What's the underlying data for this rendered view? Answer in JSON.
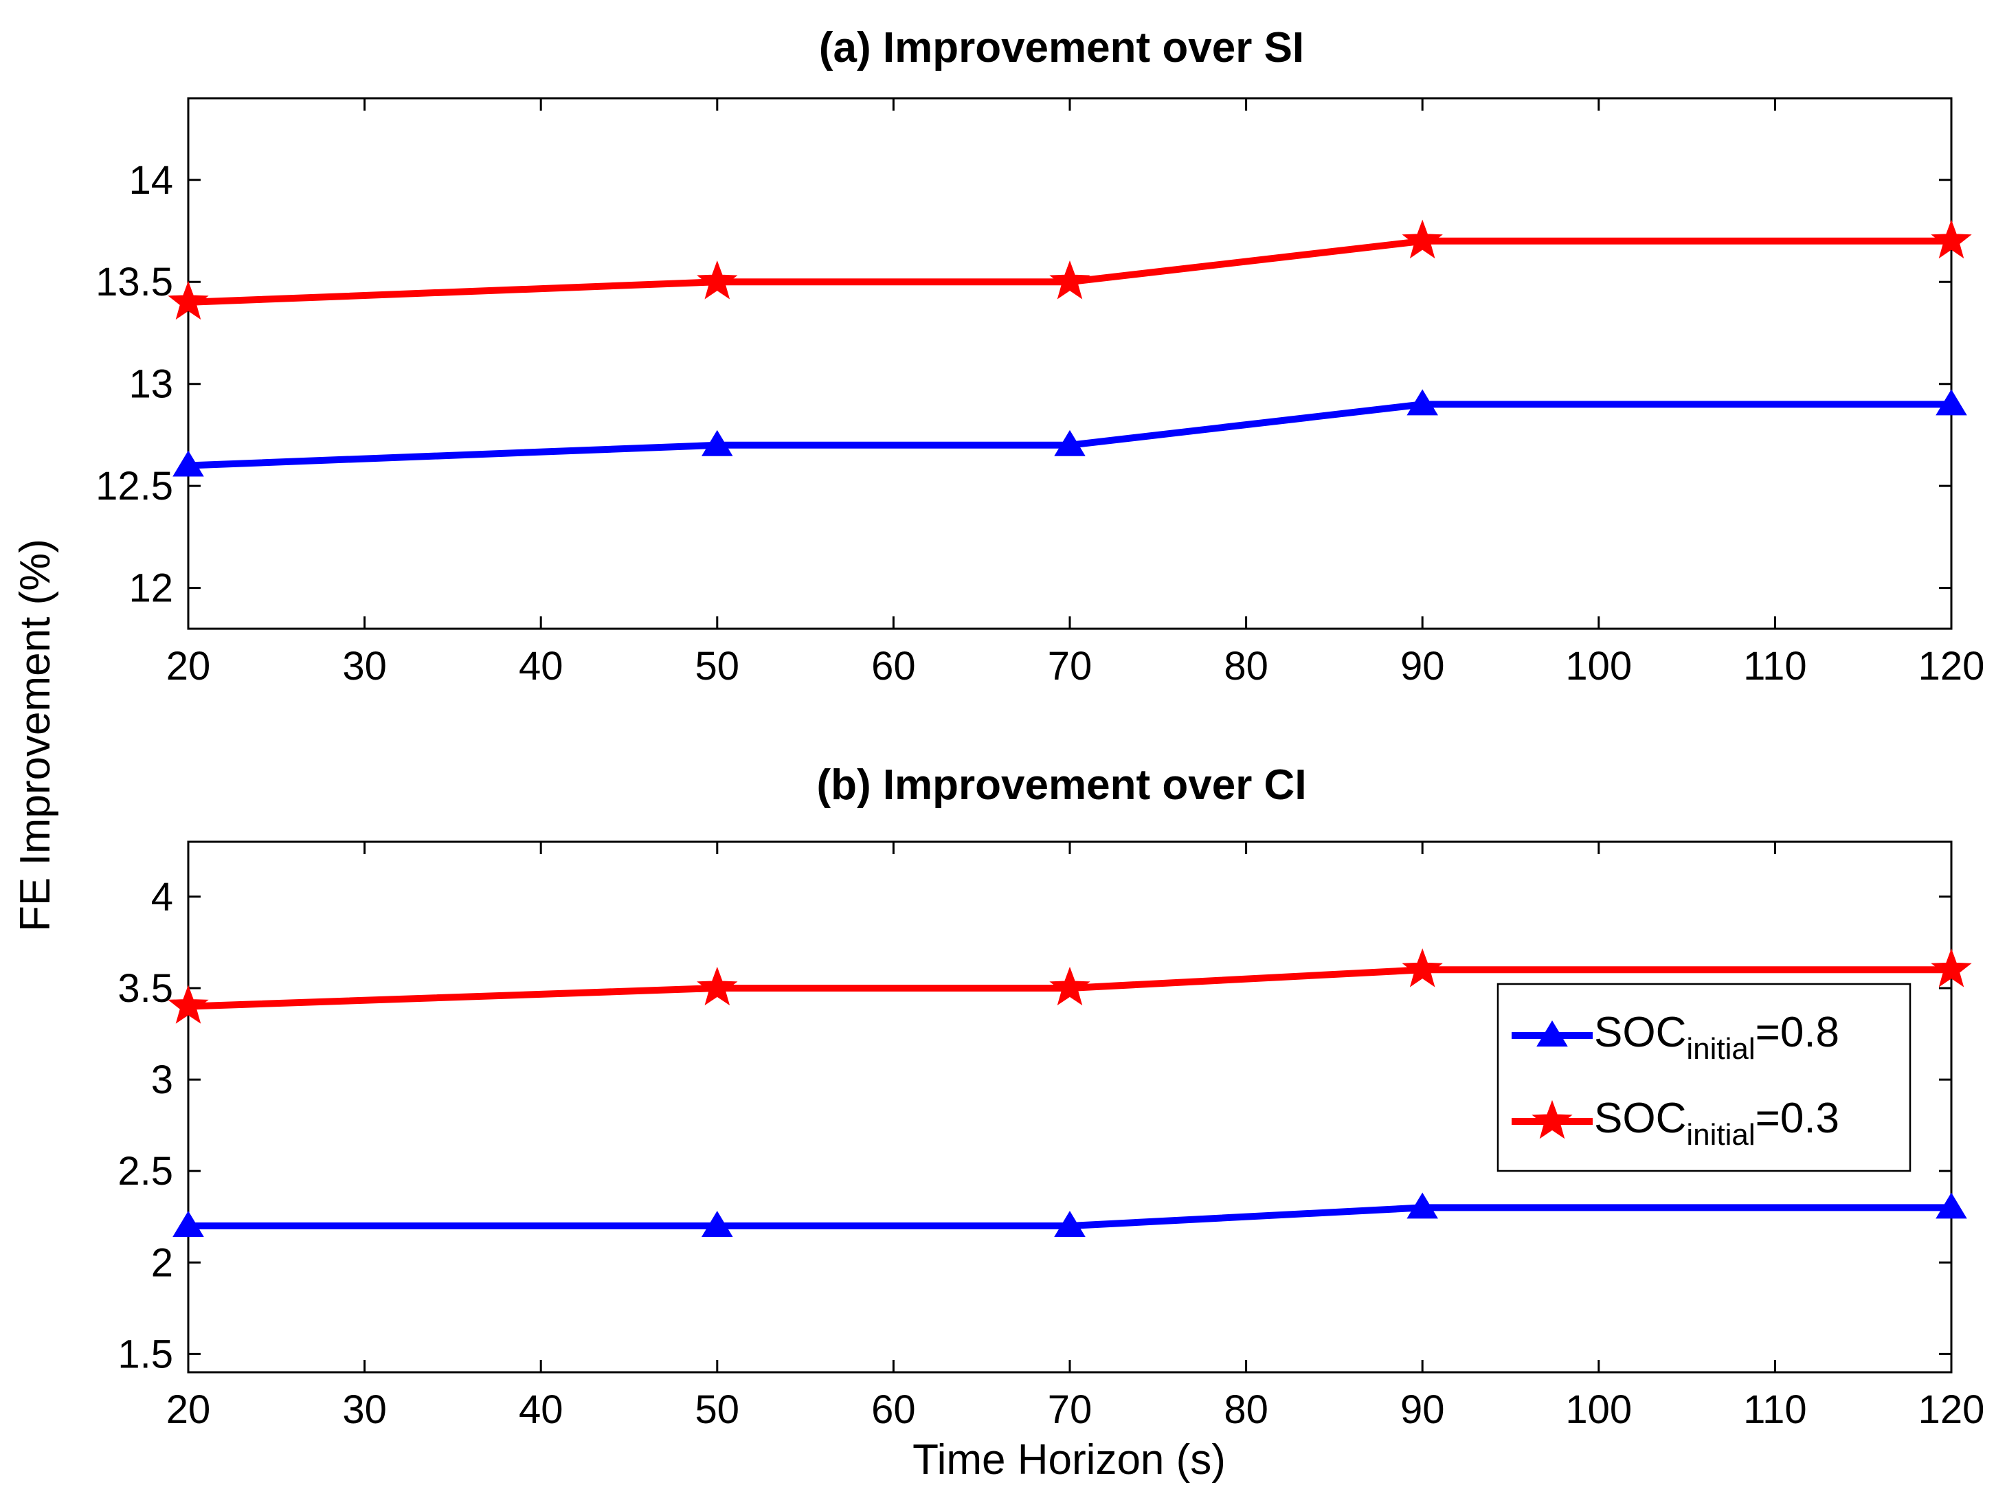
{
  "figure": {
    "ylabel": "FE Improvement (%)",
    "xlabel": "Time Horizon (s)",
    "legend": {
      "placement": "right",
      "entries": [
        {
          "prefix": "SOC",
          "sub": "initial",
          "suffix": "=0.8",
          "color": "#0000ff",
          "marker": "triangle"
        },
        {
          "prefix": "SOC",
          "sub": "initial",
          "suffix": "=0.3",
          "color": "#ff0000",
          "marker": "star"
        }
      ]
    }
  },
  "chart_data": [
    {
      "type": "line",
      "title": "(a) Improvement over SI",
      "x": [
        20,
        50,
        70,
        90,
        120
      ],
      "xlim": [
        20,
        120
      ],
      "xticks": [
        20,
        30,
        40,
        50,
        60,
        70,
        80,
        90,
        100,
        110,
        120
      ],
      "ylim": [
        11.8,
        14.4
      ],
      "yticks": [
        12,
        12.5,
        13,
        13.5,
        14
      ],
      "ytick_labels": [
        "12",
        "12.5",
        "13",
        "13.5",
        "14"
      ],
      "grid": false,
      "series": [
        {
          "name": "SOC initial=0.8",
          "color": "#0000ff",
          "marker": "triangle",
          "values": [
            12.6,
            12.7,
            12.7,
            12.9,
            12.9
          ]
        },
        {
          "name": "SOC initial=0.3",
          "color": "#ff0000",
          "marker": "star",
          "values": [
            13.4,
            13.5,
            13.5,
            13.7,
            13.7
          ]
        }
      ]
    },
    {
      "type": "line",
      "title": "(b) Improvement over CI",
      "x": [
        20,
        50,
        70,
        90,
        120
      ],
      "xlim": [
        20,
        120
      ],
      "xticks": [
        20,
        30,
        40,
        50,
        60,
        70,
        80,
        90,
        100,
        110,
        120
      ],
      "ylim": [
        1.4,
        4.3
      ],
      "yticks": [
        1.5,
        2,
        2.5,
        3,
        3.5,
        4
      ],
      "ytick_labels": [
        "1.5",
        "2",
        "2.5",
        "3",
        "3.5",
        "4"
      ],
      "grid": false,
      "series": [
        {
          "name": "SOC initial=0.8",
          "color": "#0000ff",
          "marker": "triangle",
          "values": [
            2.2,
            2.2,
            2.2,
            2.3,
            2.3
          ]
        },
        {
          "name": "SOC initial=0.3",
          "color": "#ff0000",
          "marker": "star",
          "values": [
            3.4,
            3.5,
            3.5,
            3.6,
            3.6
          ]
        }
      ]
    }
  ]
}
